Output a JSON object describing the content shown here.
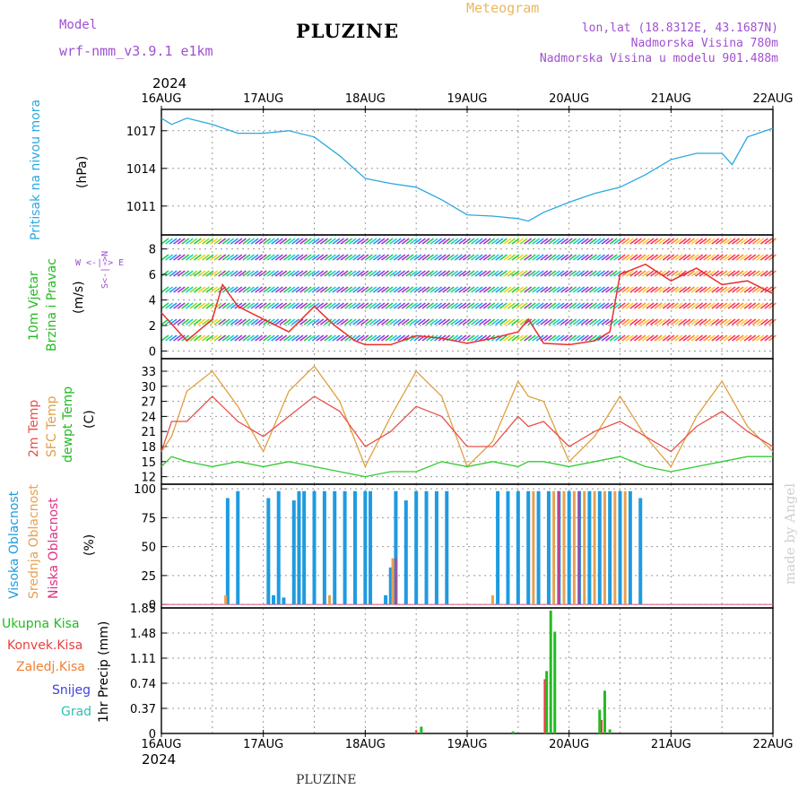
{
  "header": {
    "model_label": "Model",
    "model_name": "wrf-nmm_v3.9.1  e1km",
    "title": "PLUZINE",
    "product": "Meteogram",
    "lonlat": "lon,lat (18.8312E, 43.1687N)",
    "altitude": "Nadmorska Visina 780m",
    "model_altitude": "Nadmorska Visina u modelu 901.488m",
    "year_top": "2024",
    "year_bottom": "2024",
    "footer": "PLUZINE",
    "watermark": "made by Angel"
  },
  "panels": {
    "pressure": {
      "label": "Pritisak na nivou mora",
      "unit": "(hPa)"
    },
    "wind": {
      "label1": "10m Vjetar",
      "label2": "Brzina i Pravac",
      "unit": "(m/s)",
      "compass": "W <-|-> E",
      "compass_ns": "S<-|->N"
    },
    "temperature": {
      "label1": "2m Temp",
      "label2": "SFC Temp",
      "label3": "dewpt Temp",
      "unit": "(C)"
    },
    "clouds": {
      "label1": "Visoka Oblacnost",
      "label2": "Srednja Oblacnost",
      "label3": "Niska Oblacnost",
      "unit": "(%)"
    },
    "precip": {
      "ylabel": "1hr Precip (mm)",
      "legend": [
        "Ukupna Kisa",
        "Konvek.Kisa",
        "Zaledj.Kisa",
        "Snijeg",
        "Grad"
      ]
    }
  },
  "colors": {
    "pressure": "#2aa8e0",
    "temp2m": "#e8504a",
    "sfc": "#e0a040",
    "dewpt": "#33cc33",
    "high_cloud": "#1e9be0",
    "mid_cloud": "#e8a050",
    "low_cloud": "#e03080",
    "total_rain": "#22bb22",
    "conv_rain": "#e84040",
    "frz_rain": "#f08030",
    "snow": "#4040e0",
    "hail": "#30c0b0",
    "model_label": "#a050d0",
    "product": "#e8b860",
    "wind_speed": "#e83030",
    "wind_gust": "#000000"
  },
  "chart_data": [
    {
      "type": "line",
      "name": "pressure",
      "x_labels": [
        "16AUG",
        "17AUG",
        "18AUG",
        "19AUG",
        "20AUG",
        "21AUG",
        "22AUG"
      ],
      "x": [
        0,
        0.1,
        0.25,
        0.5,
        0.75,
        1.0,
        1.25,
        1.5,
        1.75,
        2.0,
        2.25,
        2.5,
        2.75,
        3.0,
        3.25,
        3.5,
        3.6,
        3.75,
        4.0,
        4.25,
        4.5,
        4.75,
        5.0,
        5.25,
        5.5,
        5.6,
        5.75,
        6.0
      ],
      "y": [
        1018,
        1017.5,
        1018,
        1017.5,
        1016.8,
        1016.8,
        1017,
        1016.5,
        1015,
        1013.2,
        1012.8,
        1012.5,
        1011.5,
        1010.3,
        1010.2,
        1010.0,
        1009.8,
        1010.5,
        1011.3,
        1012.0,
        1012.5,
        1013.5,
        1014.7,
        1015.2,
        1015.2,
        1014.3,
        1016.5,
        1017.2
      ],
      "yticks": [
        1011,
        1014,
        1017
      ],
      "ylim": [
        1008.7,
        1018.7
      ]
    },
    {
      "type": "line",
      "name": "wind",
      "x": [
        0,
        0.25,
        0.5,
        0.6,
        0.75,
        1.0,
        1.25,
        1.5,
        1.7,
        1.9,
        2.0,
        2.25,
        2.5,
        2.75,
        3.0,
        3.25,
        3.5,
        3.6,
        3.75,
        4.0,
        4.25,
        4.4,
        4.5,
        4.75,
        5.0,
        5.25,
        5.5,
        5.75,
        6.0
      ],
      "speed": [
        3,
        0.8,
        2.5,
        5.2,
        3.5,
        2.5,
        1.5,
        3.5,
        2.0,
        0.8,
        0.5,
        0.5,
        1.2,
        1.0,
        0.6,
        1.0,
        1.5,
        2.5,
        0.6,
        0.5,
        0.8,
        1.5,
        6.0,
        6.8,
        5.5,
        6.5,
        5.2,
        5.5,
        4.5
      ],
      "yticks": [
        0,
        2,
        4,
        6,
        8
      ],
      "ylim": [
        -0.6,
        9.1
      ]
    },
    {
      "type": "line",
      "name": "temperature",
      "x": [
        0,
        0.1,
        0.25,
        0.5,
        0.75,
        1.0,
        1.25,
        1.5,
        1.75,
        2.0,
        2.25,
        2.5,
        2.75,
        3.0,
        3.25,
        3.5,
        3.6,
        3.75,
        4.0,
        4.25,
        4.5,
        4.75,
        5.0,
        5.25,
        5.5,
        5.75,
        6.0
      ],
      "temp2m": [
        17,
        23,
        23,
        28,
        23,
        20,
        24,
        28,
        25,
        18,
        21,
        26,
        24,
        18,
        18,
        24,
        22,
        23,
        18,
        21,
        23,
        20,
        17,
        22,
        25,
        21,
        18
      ],
      "sfc": [
        17,
        20,
        29,
        33,
        26,
        17,
        29,
        34,
        27,
        14,
        24,
        33,
        28,
        14,
        19,
        31,
        28,
        27,
        15,
        20,
        28,
        20,
        14,
        24,
        31,
        22,
        17
      ],
      "dewpt": [
        14,
        16,
        15,
        14,
        15,
        14,
        15,
        14,
        13,
        12,
        13,
        13,
        15,
        14,
        15,
        14,
        15,
        15,
        14,
        15,
        16,
        14,
        13,
        14,
        15,
        16,
        16
      ],
      "yticks": [
        12,
        15,
        18,
        21,
        24,
        27,
        30,
        33
      ],
      "ylim": [
        10.5,
        35.5
      ]
    },
    {
      "type": "bar",
      "name": "clouds",
      "high_bars": [
        [
          0.65,
          92
        ],
        [
          0.75,
          98
        ],
        [
          1.05,
          92
        ],
        [
          1.1,
          8
        ],
        [
          1.15,
          98
        ],
        [
          1.2,
          6
        ],
        [
          1.3,
          90
        ],
        [
          1.35,
          98
        ],
        [
          1.4,
          98
        ],
        [
          1.5,
          98
        ],
        [
          1.6,
          98
        ],
        [
          1.7,
          98
        ],
        [
          1.8,
          98
        ],
        [
          1.9,
          98
        ],
        [
          2.0,
          98
        ],
        [
          2.05,
          98
        ],
        [
          2.2,
          8
        ],
        [
          2.25,
          32
        ],
        [
          2.3,
          98
        ],
        [
          2.4,
          90
        ],
        [
          2.5,
          98
        ],
        [
          2.6,
          98
        ],
        [
          2.7,
          98
        ],
        [
          2.8,
          98
        ],
        [
          3.3,
          98
        ],
        [
          3.4,
          98
        ],
        [
          3.5,
          98
        ],
        [
          3.6,
          98
        ],
        [
          3.7,
          98
        ],
        [
          3.8,
          98
        ],
        [
          3.9,
          98
        ],
        [
          4.0,
          98
        ],
        [
          4.1,
          98
        ],
        [
          4.2,
          98
        ],
        [
          4.3,
          98
        ],
        [
          4.4,
          98
        ],
        [
          4.5,
          98
        ],
        [
          4.6,
          98
        ],
        [
          4.7,
          92
        ]
      ],
      "mid_bars": [
        [
          0.63,
          8
        ],
        [
          1.65,
          8
        ],
        [
          2.27,
          40
        ],
        [
          3.25,
          8
        ],
        [
          3.65,
          98
        ],
        [
          3.85,
          98
        ],
        [
          3.95,
          98
        ],
        [
          4.05,
          98
        ],
        [
          4.15,
          98
        ],
        [
          4.25,
          98
        ],
        [
          4.35,
          98
        ],
        [
          4.45,
          98
        ],
        [
          4.55,
          98
        ]
      ],
      "low_bars": [
        [
          2.3,
          40
        ],
        [
          3.9,
          98
        ],
        [
          4.1,
          98
        ]
      ],
      "yticks": [
        0,
        25,
        50,
        75,
        100
      ],
      "ylim": [
        -3,
        104
      ]
    },
    {
      "type": "bar",
      "name": "precip",
      "total_bars": [
        [
          2.55,
          0.1
        ],
        [
          3.45,
          0.03
        ],
        [
          3.78,
          0.92
        ],
        [
          3.82,
          1.81
        ],
        [
          3.86,
          1.5
        ],
        [
          4.3,
          0.35
        ],
        [
          4.35,
          0.63
        ],
        [
          4.4,
          0.06
        ]
      ],
      "conv_bars": [
        [
          2.5,
          0.05
        ],
        [
          3.76,
          0.8
        ],
        [
          4.32,
          0.2
        ]
      ],
      "yticks": [
        0,
        0.37,
        0.74,
        1.11,
        1.48,
        1.85
      ],
      "ylim": [
        0,
        1.85
      ]
    }
  ]
}
